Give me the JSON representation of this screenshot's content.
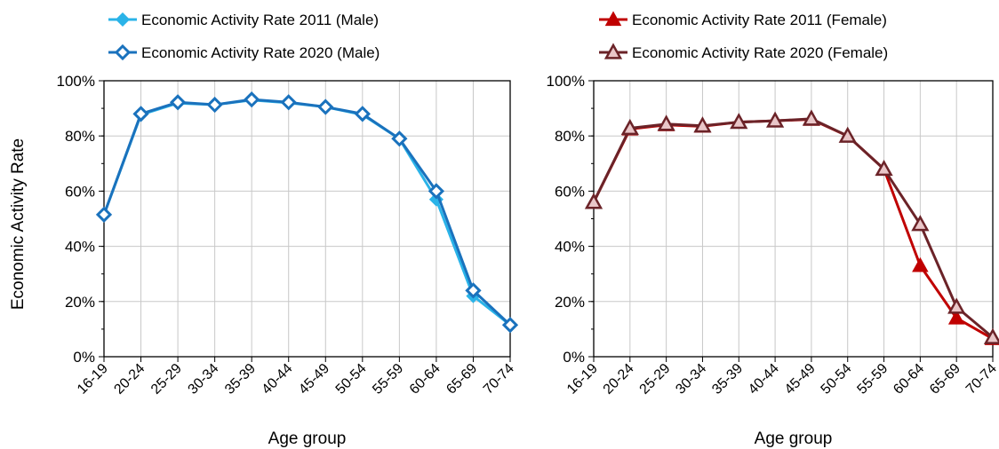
{
  "chart_data": [
    {
      "type": "line",
      "title": "",
      "xlabel": "Age group",
      "ylabel": "Economic Activity Rate",
      "ylim": [
        0,
        1
      ],
      "y_tick_labels": [
        "0%",
        "20%",
        "40%",
        "60%",
        "80%",
        "100%"
      ],
      "grid": true,
      "legend_position": "top",
      "categories": [
        "16-19",
        "20-24",
        "25-29",
        "30-34",
        "35-39",
        "40-44",
        "45-49",
        "50-54",
        "55-59",
        "60-64",
        "65-69",
        "70-74"
      ],
      "series": [
        {
          "name": "Economic Activity Rate 2011 (Male)",
          "color": "#2ab3e8",
          "marker": "diamond-filled",
          "values": [
            0.515,
            0.877,
            0.919,
            0.913,
            0.93,
            0.92,
            0.905,
            0.877,
            0.79,
            0.57,
            0.22,
            0.115
          ]
        },
        {
          "name": "Economic Activity Rate 2020 (Male)",
          "color": "#1a72bd",
          "marker": "diamond-open",
          "values": [
            0.515,
            0.88,
            0.922,
            0.913,
            0.932,
            0.922,
            0.905,
            0.88,
            0.79,
            0.6,
            0.24,
            0.115
          ]
        }
      ]
    },
    {
      "type": "line",
      "title": "",
      "xlabel": "Age group",
      "ylabel": "",
      "ylim": [
        0,
        1
      ],
      "y_tick_labels": [
        "0%",
        "20%",
        "40%",
        "60%",
        "80%",
        "100%"
      ],
      "grid": true,
      "legend_position": "top",
      "categories": [
        "16-19",
        "20-24",
        "25-29",
        "30-34",
        "35-39",
        "40-44",
        "45-49",
        "50-54",
        "55-59",
        "60-64",
        "65-69",
        "70-74"
      ],
      "series": [
        {
          "name": "Economic Activity Rate 2011 (Female)",
          "color": "#c00000",
          "marker": "triangle-filled",
          "values": [
            0.56,
            0.825,
            0.84,
            0.835,
            0.85,
            0.855,
            0.86,
            0.8,
            0.68,
            0.33,
            0.14,
            0.065
          ]
        },
        {
          "name": "Economic Activity Rate 2020 (Female)",
          "color": "#6b2328",
          "marker": "triangle-open",
          "values": [
            0.56,
            0.828,
            0.843,
            0.837,
            0.85,
            0.855,
            0.862,
            0.8,
            0.68,
            0.48,
            0.18,
            0.07
          ]
        }
      ]
    }
  ]
}
